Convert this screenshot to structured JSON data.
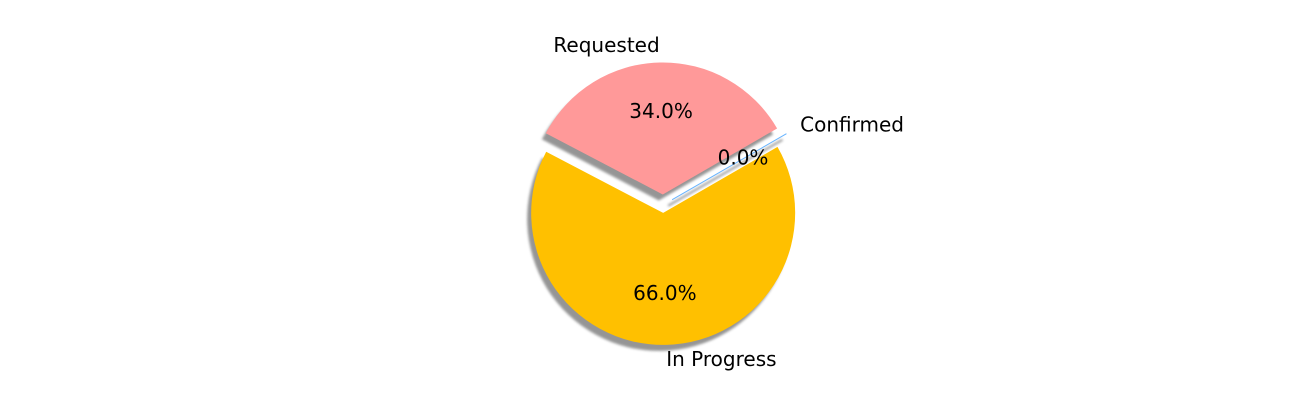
{
  "chart_data": {
    "type": "pie",
    "title": "",
    "slices": [
      {
        "label": "Confirmed",
        "value": 0.0,
        "pct_text": "0.0%",
        "color": "#66b3ff"
      },
      {
        "label": "Requested",
        "value": 34.0,
        "pct_text": "34.0%",
        "color": "#ff9999"
      },
      {
        "label": "In Progress",
        "value": 66.0,
        "pct_text": "66.0%",
        "color": "#ffc000"
      }
    ],
    "shadow": true,
    "exploded": true,
    "legend": "none"
  }
}
